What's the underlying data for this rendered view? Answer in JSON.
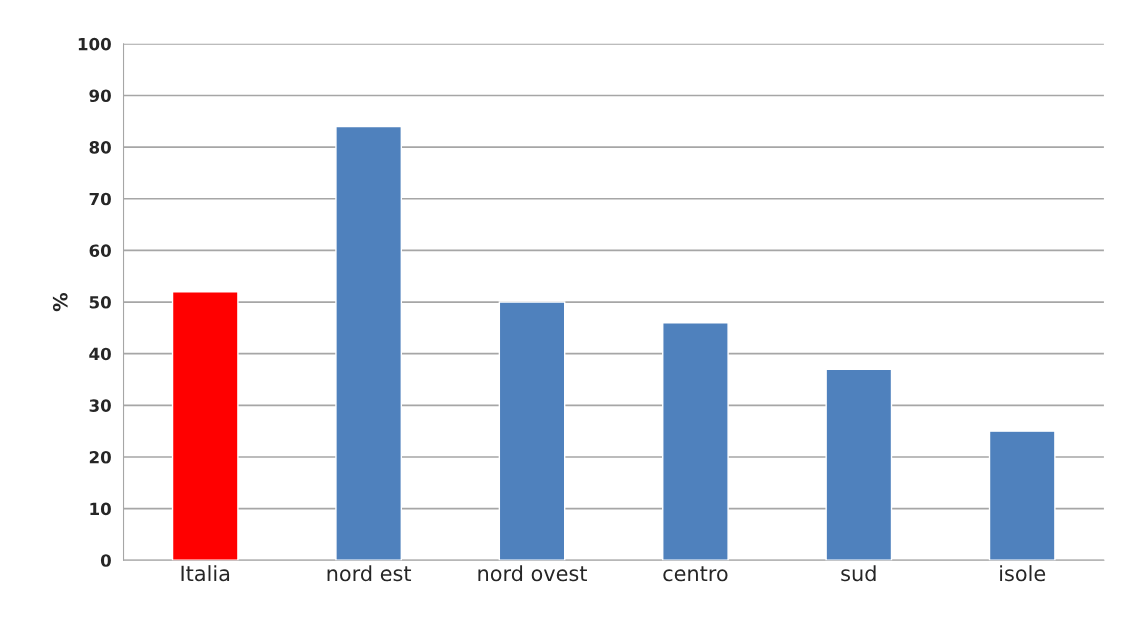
{
  "chart_data": {
    "type": "bar",
    "ylabel": "%",
    "categories": [
      "Italia",
      "nord est",
      "nord ovest",
      "centro",
      "sud",
      "isole"
    ],
    "values": [
      52,
      84,
      50,
      46,
      37,
      25
    ],
    "colors": [
      "#ff0000",
      "#4f81bd",
      "#4f81bd",
      "#4f81bd",
      "#4f81bd",
      "#4f81bd"
    ],
    "ylim": [
      0,
      100
    ],
    "yticks": [
      0,
      10,
      20,
      30,
      40,
      50,
      60,
      70,
      80,
      90,
      100
    ],
    "grid": "y"
  }
}
